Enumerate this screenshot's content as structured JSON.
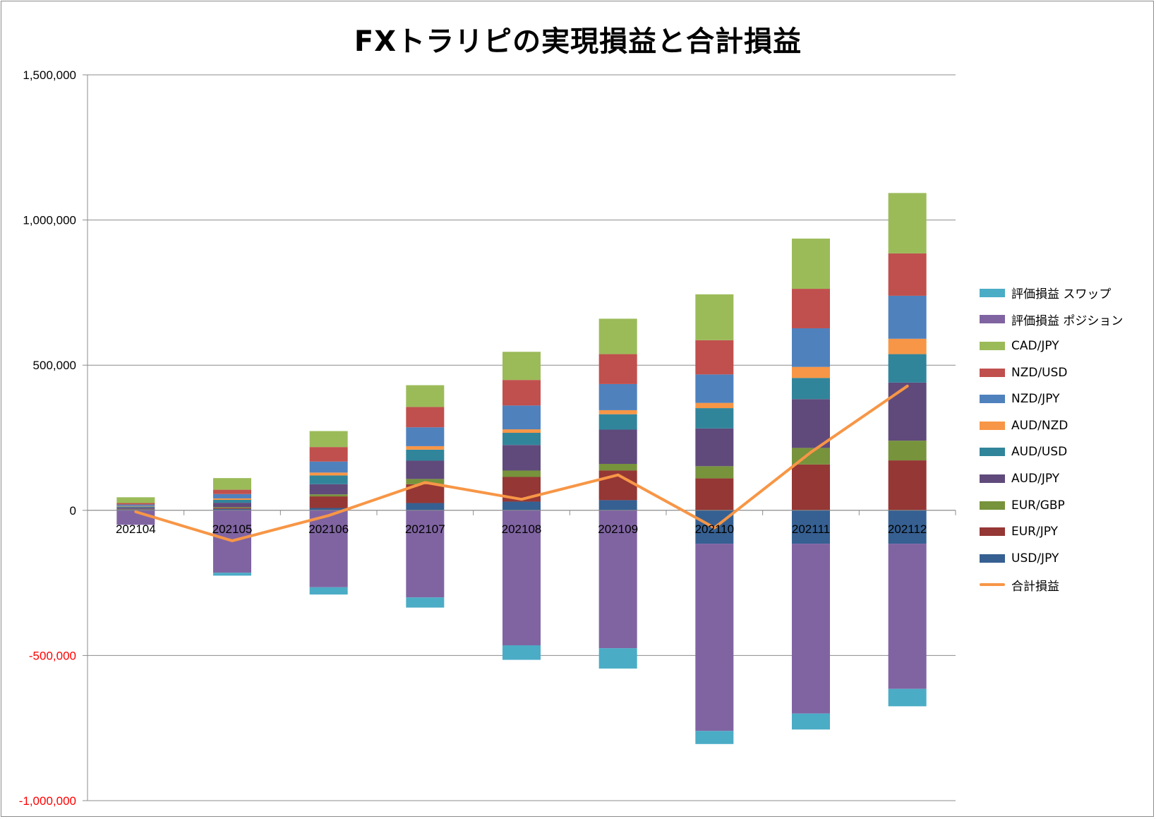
{
  "title": "FXトラリピの実現損益と合計損益",
  "chart_data": {
    "type": "bar",
    "stacked": true,
    "title": "FXトラリピの実現損益と合計損益",
    "categories": [
      "202104",
      "202105",
      "202106",
      "202107",
      "202108",
      "202109",
      "202110",
      "202111",
      "202112"
    ],
    "ylim": [
      -1000000,
      1500000
    ],
    "y_ticks": [
      {
        "value": 1500000,
        "label": "1,500,000"
      },
      {
        "value": 1000000,
        "label": "1,000,000"
      },
      {
        "value": 500000,
        "label": "500,000"
      },
      {
        "value": 0,
        "label": "0"
      },
      {
        "value": -500000,
        "label": "-500,000"
      },
      {
        "value": -1000000,
        "label": "-1,000,000"
      }
    ],
    "negative_tick_color": "#ff0000",
    "grid": true,
    "legend_position": "right",
    "series": [
      {
        "name": "評価損益 スワップ",
        "color": "#4bacc6",
        "values": [
          0,
          -10000,
          -25000,
          -35000,
          -50000,
          -70000,
          -45000,
          -55000,
          -60000
        ]
      },
      {
        "name": "評価損益 ポジション",
        "color": "#8064a2",
        "values": [
          -50000,
          -215000,
          -265000,
          -300000,
          -465000,
          -475000,
          -645000,
          -585000,
          -500000
        ]
      },
      {
        "name": "CAD/JPY",
        "color": "#9bbb59",
        "values": [
          20000,
          40000,
          55000,
          75000,
          97000,
          122000,
          158000,
          173000,
          208000
        ]
      },
      {
        "name": "NZD/USD",
        "color": "#c0504d",
        "values": [
          5000,
          15000,
          50000,
          70000,
          88000,
          103000,
          118000,
          136000,
          146000
        ]
      },
      {
        "name": "NZD/JPY",
        "color": "#4f81bd",
        "values": [
          5000,
          15000,
          38000,
          65000,
          82000,
          90000,
          98000,
          133000,
          148000
        ]
      },
      {
        "name": "AUD/NZD",
        "color": "#f79646",
        "values": [
          2000,
          5000,
          10000,
          12000,
          12000,
          14000,
          18000,
          38000,
          53000
        ]
      },
      {
        "name": "AUD/USD",
        "color": "#31859b",
        "values": [
          3000,
          10000,
          30000,
          38000,
          42000,
          53000,
          70000,
          73000,
          98000
        ]
      },
      {
        "name": "AUD/JPY",
        "color": "#604a7b",
        "values": [
          5000,
          15000,
          35000,
          63000,
          88000,
          118000,
          130000,
          168000,
          200000
        ]
      },
      {
        "name": "EUR/GBP",
        "color": "#77933c",
        "values": [
          1000,
          3000,
          7000,
          18000,
          22000,
          23000,
          42000,
          57000,
          68000
        ]
      },
      {
        "name": "EUR/JPY",
        "color": "#953735",
        "values": [
          1000,
          3000,
          40000,
          65000,
          85000,
          102000,
          110000,
          158000,
          172000
        ]
      },
      {
        "name": "USD/JPY",
        "color": "#366092",
        "values": [
          3000,
          5000,
          8000,
          25000,
          30000,
          35000,
          -115000,
          -115000,
          -115000
        ]
      }
    ],
    "line_series": {
      "name": "合計損益",
      "color": "#f79646",
      "values": [
        -5000,
        -105000,
        -18000,
        96000,
        38000,
        122000,
        -60000,
        200000,
        428000
      ]
    }
  }
}
